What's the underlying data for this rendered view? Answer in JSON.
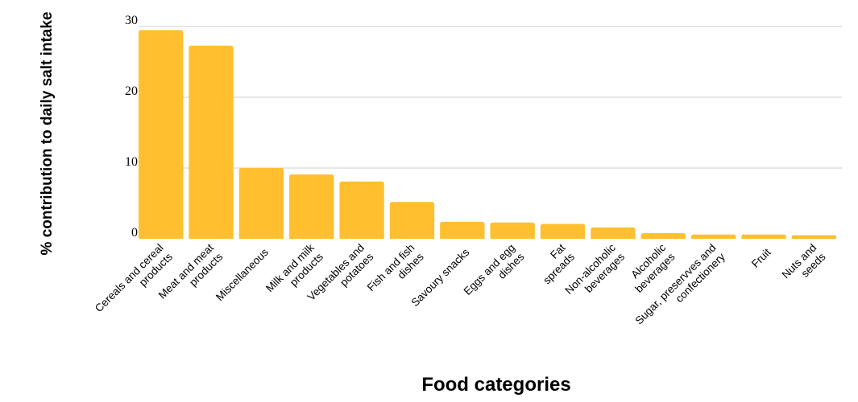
{
  "chart_data": {
    "type": "bar",
    "title": "",
    "xlabel": "Food categories",
    "ylabel": "% contribution to daily salt intake",
    "ylim": [
      0,
      30
    ],
    "yticks": [
      0,
      10,
      20,
      30
    ],
    "grid": true,
    "bar_color": "#FFBF2F",
    "categories": [
      [
        "Cereals and cereal",
        "products"
      ],
      [
        "Meat and meat",
        "products"
      ],
      [
        "Miscellaneous"
      ],
      [
        "Milk and milk",
        "products"
      ],
      [
        "Vegetables and",
        "potatoes"
      ],
      [
        "Fish and fish",
        "dishes"
      ],
      [
        "Savoury snacks"
      ],
      [
        "Eggs and egg",
        "dishes"
      ],
      [
        "Fat",
        "spreads"
      ],
      [
        "Non-alcoholic",
        "beverages"
      ],
      [
        "Alcoholic",
        "beverages"
      ],
      [
        "Sugar, preservves and",
        "confectionery"
      ],
      [
        "Fruit"
      ],
      [
        "Nuts and",
        "seeds"
      ]
    ],
    "values": [
      29.5,
      27.3,
      10.0,
      9.1,
      8.1,
      5.2,
      2.4,
      2.3,
      2.1,
      1.6,
      0.8,
      0.6,
      0.6,
      0.5
    ]
  }
}
